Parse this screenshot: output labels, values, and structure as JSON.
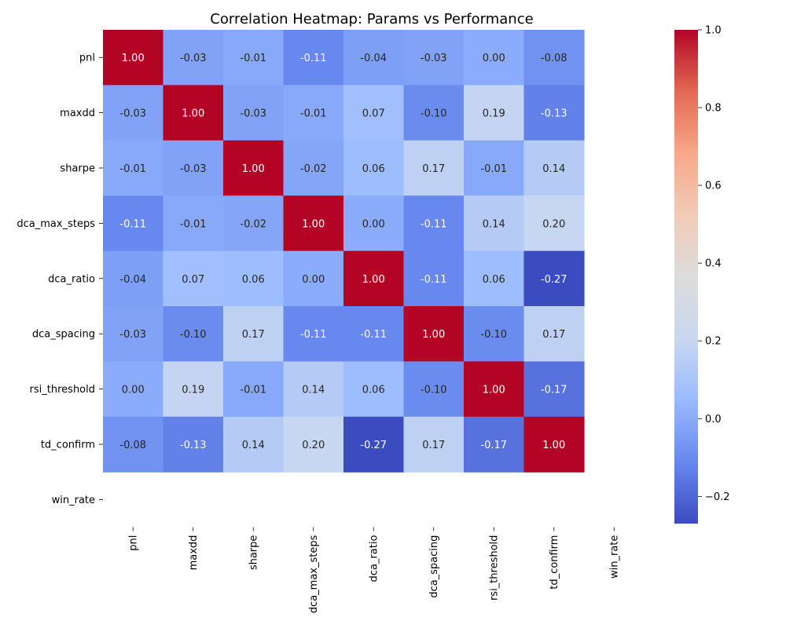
{
  "chart_data": {
    "type": "heatmap",
    "title": "Correlation Heatmap: Params vs Performance",
    "xlabel": "",
    "ylabel": "",
    "row_labels": [
      "pnl",
      "maxdd",
      "sharpe",
      "dca_max_steps",
      "dca_ratio",
      "dca_spacing",
      "rsi_threshold",
      "td_confirm",
      "win_rate"
    ],
    "col_labels": [
      "pnl",
      "maxdd",
      "sharpe",
      "dca_max_steps",
      "dca_ratio",
      "dca_spacing",
      "rsi_threshold",
      "td_confirm",
      "win_rate"
    ],
    "values": [
      [
        1.0,
        -0.03,
        -0.01,
        -0.11,
        -0.04,
        -0.03,
        0.0,
        -0.08,
        null
      ],
      [
        -0.03,
        1.0,
        -0.03,
        -0.01,
        0.07,
        -0.1,
        0.19,
        -0.13,
        null
      ],
      [
        -0.01,
        -0.03,
        1.0,
        -0.02,
        0.06,
        0.17,
        -0.01,
        0.14,
        null
      ],
      [
        -0.11,
        -0.01,
        -0.02,
        1.0,
        0.0,
        -0.11,
        0.14,
        0.2,
        null
      ],
      [
        -0.04,
        0.07,
        0.06,
        0.0,
        1.0,
        -0.11,
        0.06,
        -0.27,
        null
      ],
      [
        -0.03,
        -0.1,
        0.17,
        -0.11,
        -0.11,
        1.0,
        -0.1,
        0.17,
        null
      ],
      [
        0.0,
        0.19,
        -0.01,
        0.14,
        0.06,
        -0.1,
        1.0,
        -0.17,
        null
      ],
      [
        -0.08,
        -0.13,
        0.14,
        0.2,
        -0.27,
        0.17,
        -0.17,
        1.0,
        null
      ],
      [
        null,
        null,
        null,
        null,
        null,
        null,
        null,
        null,
        null
      ]
    ],
    "value_format": "0.00",
    "colormap": "coolwarm",
    "colormap_stops": [
      "#3b4cc0",
      "#6788ee",
      "#9abbff",
      "#c9d7f0",
      "#dddcdc",
      "#f2cbb7",
      "#f7a889",
      "#e26952",
      "#b40426"
    ],
    "color_range": [
      -0.27,
      1.0
    ],
    "colorbar": {
      "ticks": [
        "−0.2",
        "0.0",
        "0.2",
        "0.4",
        "0.6",
        "0.8",
        "1.0"
      ],
      "tick_values": [
        -0.2,
        0.0,
        0.2,
        0.4,
        0.6,
        0.8,
        1.0
      ]
    },
    "text_color_dark": "#262626",
    "text_color_light": "#ffffff"
  }
}
